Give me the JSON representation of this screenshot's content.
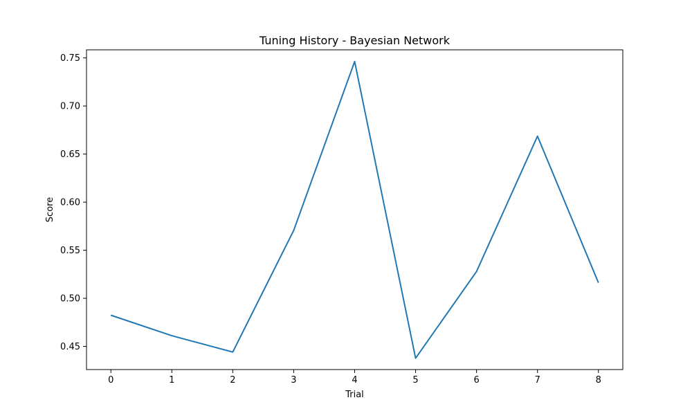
{
  "chart_data": {
    "type": "line",
    "title": "Tuning History - Bayesian Network",
    "xlabel": "Trial",
    "ylabel": "Score",
    "x": [
      0,
      1,
      2,
      3,
      4,
      5,
      6,
      7,
      8
    ],
    "xticks": [
      "0",
      "1",
      "2",
      "3",
      "4",
      "5",
      "6",
      "7",
      "8"
    ],
    "yticks": [
      "0.45",
      "0.50",
      "0.55",
      "0.60",
      "0.65",
      "0.70",
      "0.75"
    ],
    "xlim": [
      -0.4,
      8.4
    ],
    "ylim": [
      0.4259,
      0.7584
    ],
    "grid": false,
    "series": [
      {
        "color": "#1f77b4",
        "values": [
          0.4824,
          0.4611,
          0.4441,
          0.5706,
          0.7463,
          0.4377,
          0.5279,
          0.6686,
          0.5162
        ]
      }
    ]
  }
}
